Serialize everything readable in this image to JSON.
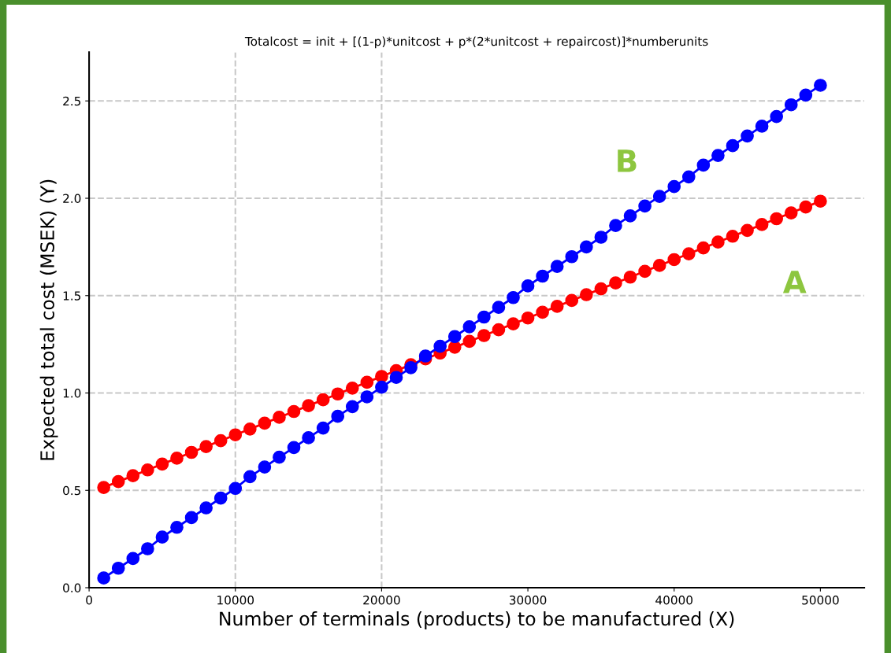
{
  "chart_data": {
    "type": "line",
    "title": "Totalcost = init + [(1-p)*unitcost + p*(2*unitcost + repaircost)]*numberunits",
    "xlabel": "Number of terminals (products) to be manufactured (X)",
    "ylabel": "Expected total cost (MSEK) (Y)",
    "x": [
      1000,
      2000,
      3000,
      4000,
      5000,
      6000,
      7000,
      8000,
      9000,
      10000,
      11000,
      12000,
      13000,
      14000,
      15000,
      16000,
      17000,
      18000,
      19000,
      20000,
      21000,
      22000,
      23000,
      24000,
      25000,
      26000,
      27000,
      28000,
      29000,
      30000,
      31000,
      32000,
      33000,
      34000,
      35000,
      36000,
      37000,
      38000,
      39000,
      40000,
      41000,
      42000,
      43000,
      44000,
      45000,
      46000,
      47000,
      48000,
      49000,
      50000
    ],
    "series": [
      {
        "name": "A",
        "color": "#ff0000",
        "values": [
          0.515,
          0.545,
          0.575,
          0.605,
          0.635,
          0.665,
          0.695,
          0.725,
          0.755,
          0.785,
          0.815,
          0.845,
          0.875,
          0.905,
          0.935,
          0.965,
          0.995,
          1.025,
          1.055,
          1.085,
          1.115,
          1.145,
          1.175,
          1.205,
          1.235,
          1.265,
          1.295,
          1.325,
          1.355,
          1.385,
          1.415,
          1.445,
          1.475,
          1.505,
          1.535,
          1.565,
          1.595,
          1.625,
          1.655,
          1.685,
          1.715,
          1.745,
          1.775,
          1.805,
          1.835,
          1.865,
          1.895,
          1.925,
          1.955,
          1.985
        ]
      },
      {
        "name": "B",
        "color": "#0000ff",
        "values": [
          0.05,
          0.1,
          0.15,
          0.2,
          0.26,
          0.31,
          0.36,
          0.41,
          0.46,
          0.51,
          0.57,
          0.62,
          0.67,
          0.72,
          0.77,
          0.82,
          0.88,
          0.93,
          0.98,
          1.03,
          1.08,
          1.13,
          1.19,
          1.24,
          1.29,
          1.34,
          1.39,
          1.44,
          1.49,
          1.55,
          1.6,
          1.65,
          1.7,
          1.75,
          1.8,
          1.86,
          1.91,
          1.96,
          2.01,
          2.06,
          2.11,
          2.17,
          2.22,
          2.27,
          2.32,
          2.37,
          2.42,
          2.48,
          2.53,
          2.58
        ]
      }
    ],
    "xlim": [
      0,
      53000
    ],
    "ylim": [
      0,
      2.75
    ],
    "xticks": [
      0,
      10000,
      20000,
      30000,
      40000,
      50000
    ],
    "yticks": [
      {
        "value": 0,
        "label": "0.0"
      },
      {
        "value": 0.5,
        "label": "0.5"
      },
      {
        "value": 1,
        "label": "1.0"
      },
      {
        "value": 1.5,
        "label": "1.5"
      },
      {
        "value": 2,
        "label": "2.0"
      },
      {
        "value": 2.5,
        "label": "2.5"
      }
    ],
    "grid": "y",
    "marker": "circle",
    "line_style": "solid",
    "ref_lines": [
      {
        "axis": "x",
        "value": 10000,
        "color": "#c8c8c8",
        "line_style": "dashed"
      },
      {
        "axis": "x",
        "value": 20000,
        "color": "#c8c8c8",
        "line_style": "dashed"
      }
    ]
  }
}
